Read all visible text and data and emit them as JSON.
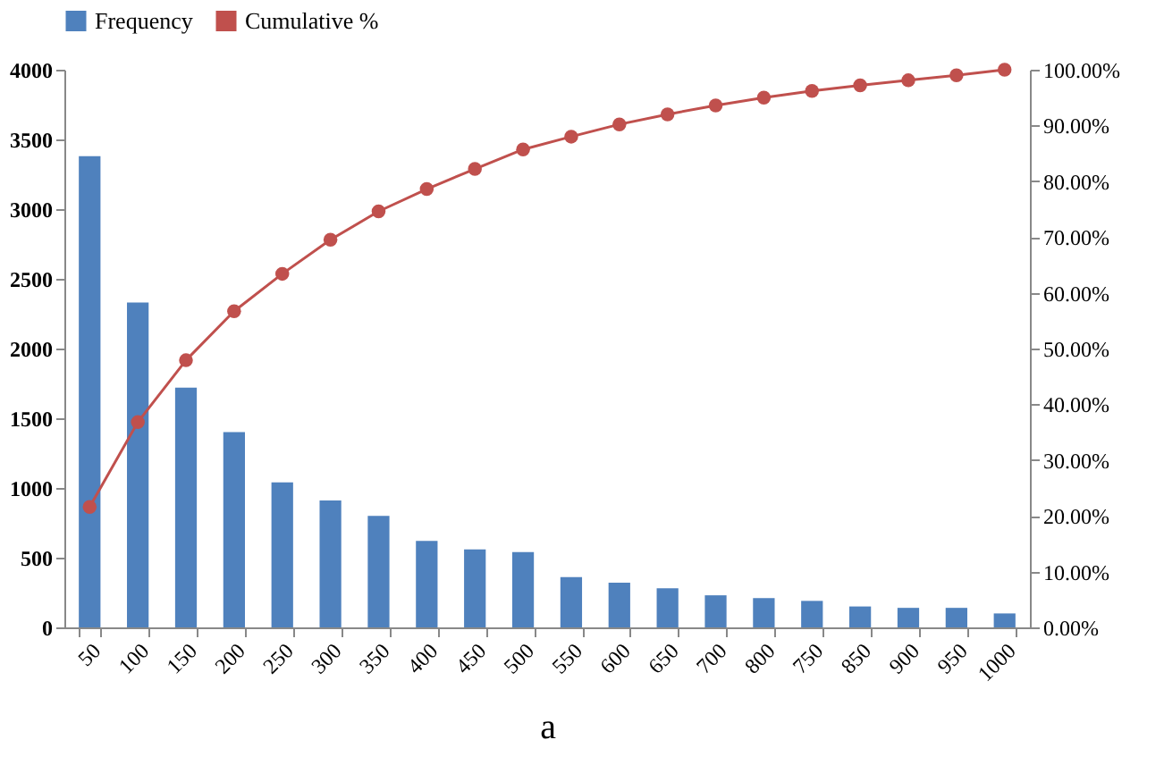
{
  "chart_data": {
    "type": "bar",
    "xlabel": "a",
    "categories": [
      "50",
      "100",
      "150",
      "200",
      "250",
      "300",
      "350",
      "400",
      "450",
      "500",
      "550",
      "600",
      "650",
      "700",
      "800",
      "750",
      "850",
      "900",
      "950",
      "1000"
    ],
    "series": [
      {
        "name": "Frequency",
        "color": "#4f81bd",
        "values": [
          3380,
          2330,
          1720,
          1400,
          1040,
          910,
          800,
          620,
          560,
          540,
          360,
          320,
          280,
          230,
          210,
          190,
          150,
          140,
          140,
          100
        ]
      },
      {
        "name": "Cumulative %",
        "type": "line",
        "axis": "y2",
        "color": "#c0504d",
        "marker": "circle",
        "line_style": "solid",
        "values": [
          21.6,
          36.8,
          47.9,
          56.7,
          63.4,
          69.5,
          74.6,
          78.6,
          82.2,
          85.7,
          88.0,
          90.2,
          92.0,
          93.6,
          95.0,
          96.2,
          97.2,
          98.1,
          99.0,
          100
        ]
      }
    ],
    "ylim": [
      0,
      4000
    ],
    "yticks": [
      0,
      500,
      1000,
      1500,
      2000,
      2500,
      3000,
      3500,
      4000
    ],
    "y2lim": [
      0,
      100
    ],
    "y2ticks": [
      {
        "value": 0,
        "label": "0.00%"
      },
      {
        "value": 10,
        "label": "10.00%"
      },
      {
        "value": 20,
        "label": "20.00%"
      },
      {
        "value": 30,
        "label": "30.00%"
      },
      {
        "value": 40,
        "label": "40.00%"
      },
      {
        "value": 50,
        "label": "50.00%"
      },
      {
        "value": 60,
        "label": "60.00%"
      },
      {
        "value": 70,
        "label": "70.00%"
      },
      {
        "value": 80,
        "label": "80.00%"
      },
      {
        "value": 90,
        "label": "90.00%"
      },
      {
        "value": 100,
        "label": "100.00%"
      }
    ],
    "legend": "top",
    "grid": false
  }
}
